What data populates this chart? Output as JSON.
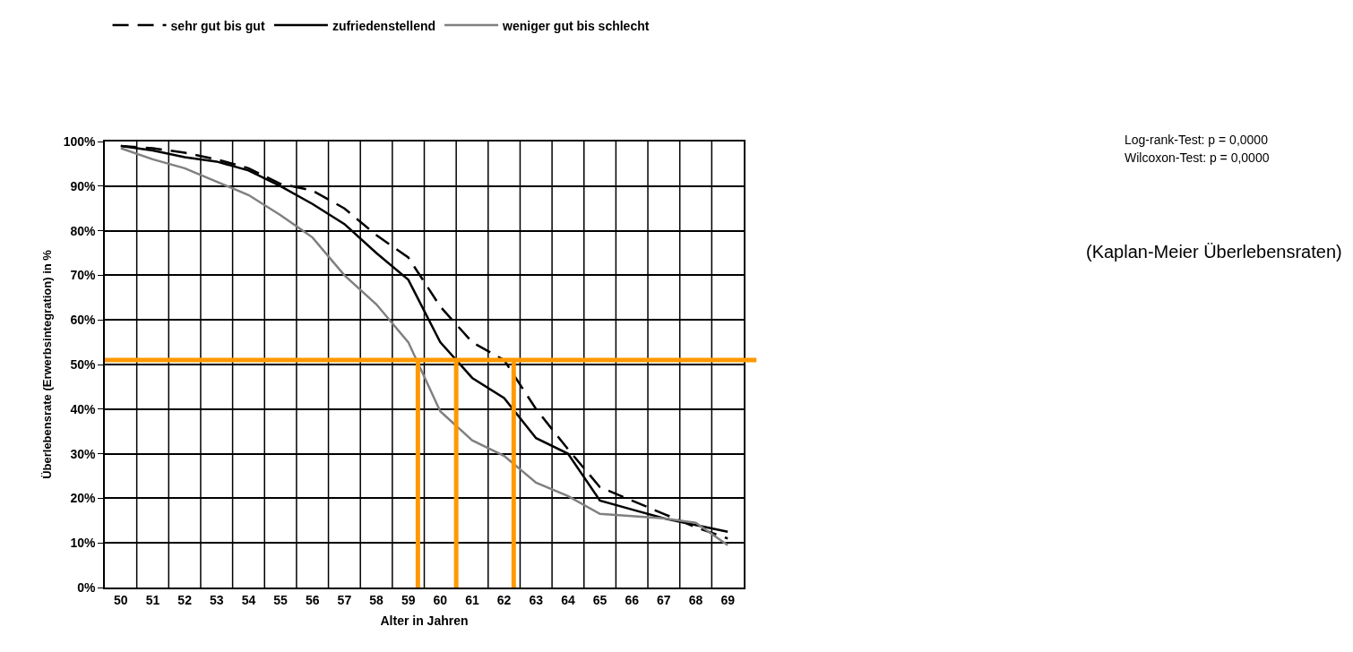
{
  "chart_data": {
    "type": "line",
    "xlabel": "Alter in Jahren",
    "ylabel": "Überlebensrate (Erwerbsintegration) in %",
    "x": [
      50,
      51,
      52,
      53,
      54,
      55,
      56,
      57,
      58,
      59,
      60,
      61,
      62,
      63,
      64,
      65,
      66,
      67,
      68,
      69
    ],
    "xlim": [
      49.5,
      69.5
    ],
    "xticks": [
      50,
      51,
      52,
      53,
      54,
      55,
      56,
      57,
      58,
      59,
      60,
      61,
      62,
      63,
      64,
      65,
      66,
      67,
      68,
      69
    ],
    "ylim": [
      0,
      100
    ],
    "yticks": [
      {
        "value": 0,
        "label": "0%"
      },
      {
        "value": 10,
        "label": "10%"
      },
      {
        "value": 20,
        "label": "20%"
      },
      {
        "value": 30,
        "label": "30%"
      },
      {
        "value": 40,
        "label": "40%"
      },
      {
        "value": 50,
        "label": "50%"
      },
      {
        "value": 60,
        "label": "60%"
      },
      {
        "value": 70,
        "label": "70%"
      },
      {
        "value": 80,
        "label": "80%"
      },
      {
        "value": 90,
        "label": "90%"
      },
      {
        "value": 100,
        "label": "100%"
      }
    ],
    "series": [
      {
        "name": "sehr gut bis gut",
        "color": "#000000",
        "line_style": "dashed",
        "values": [
          99,
          98.5,
          97.5,
          96,
          94,
          90.5,
          89,
          85,
          79,
          74,
          63,
          55,
          51,
          40,
          31,
          22.5,
          19.5,
          16.5,
          13.5,
          11
        ]
      },
      {
        "name": "zufriedenstellend",
        "color": "#000000",
        "line_style": "solid",
        "values": [
          99,
          98,
          96.5,
          95.5,
          93.5,
          90,
          86,
          81.5,
          75,
          69,
          55,
          47,
          42.5,
          33.5,
          30,
          19.5,
          17.5,
          15.5,
          14,
          12.5
        ]
      },
      {
        "name": "weniger gut bis schlecht",
        "color": "#808080",
        "line_style": "solid",
        "values": [
          98.5,
          96,
          94,
          91,
          88,
          83.5,
          78.5,
          70,
          63.5,
          55,
          39.5,
          33,
          29.5,
          23.5,
          20.5,
          16.5,
          16,
          15.5,
          14.5,
          9.5
        ]
      }
    ],
    "ref_lines": [
      {
        "axis": "y",
        "value": 51,
        "color": "#ff9900"
      },
      {
        "axis": "x",
        "value": 59.3,
        "color": "#ff9900"
      },
      {
        "axis": "x",
        "value": 60.5,
        "color": "#ff9900"
      },
      {
        "axis": "x",
        "value": 62.3,
        "color": "#ff9900"
      }
    ],
    "annotations": [
      "Log-rank-Test: p = 0,0000",
      "Wilcoxon-Test: p = 0,0000",
      "(Kaplan-Meier Überlebensraten)"
    ],
    "grid": true,
    "legend": "top",
    "marker": "none"
  }
}
